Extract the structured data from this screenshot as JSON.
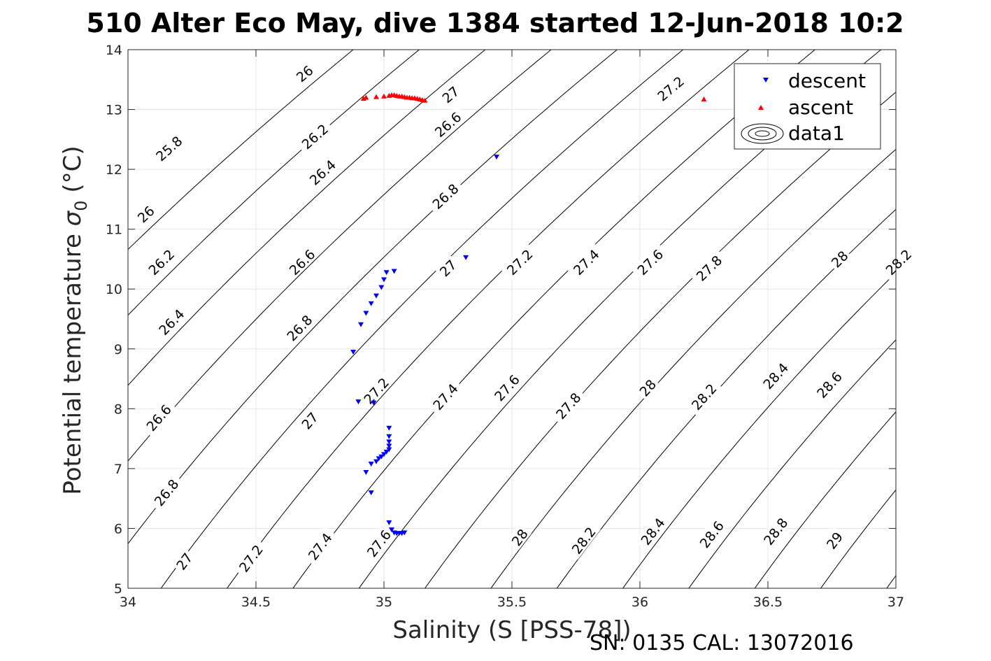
{
  "chart_data": {
    "type": "scatter",
    "title": "510 Alter Eco May, dive 1384 started 12-Jun-2018 10:2",
    "xlabel": "Salinity (S [PSS-78])",
    "ylabel": "Potential temperature σ₀ (°C)",
    "ylabel_main": "Potential temperature ",
    "ylabel_sigma": "σ",
    "ylabel_sub": "0",
    "ylabel_unit": " (°C)",
    "footer": "SN: 0135  CAL: 13072016",
    "xlim": [
      34,
      37
    ],
    "ylim": [
      5,
      14
    ],
    "xticks": [
      34,
      34.5,
      35,
      35.5,
      36,
      36.5,
      37
    ],
    "xtick_labels": [
      "34",
      "34.5",
      "35",
      "35.5",
      "36",
      "36.5",
      "37"
    ],
    "yticks": [
      5,
      6,
      7,
      8,
      9,
      10,
      11,
      12,
      13,
      14
    ],
    "ytick_labels": [
      "5",
      "6",
      "7",
      "8",
      "9",
      "10",
      "11",
      "12",
      "13",
      "14"
    ],
    "grid": true,
    "legend_position": "top-right",
    "contours": {
      "name": "data1",
      "variable": "sigma_0",
      "levels": [
        25.8,
        26,
        26.2,
        26.4,
        26.6,
        26.8,
        27,
        27.2,
        27.4,
        27.6,
        27.8,
        28,
        28.2,
        28.4,
        28.6,
        28.8,
        29
      ],
      "labels": [
        {
          "text": "26",
          "s": 34.69,
          "t": 13.6
        },
        {
          "text": "25.8",
          "s": 34.16,
          "t": 12.35
        },
        {
          "text": "26.2",
          "s": 34.73,
          "t": 12.55
        },
        {
          "text": "26",
          "s": 34.07,
          "t": 11.25
        },
        {
          "text": "26.4",
          "s": 34.76,
          "t": 11.95
        },
        {
          "text": "26.6",
          "s": 35.25,
          "t": 12.75
        },
        {
          "text": "26.2",
          "s": 34.13,
          "t": 10.45
        },
        {
          "text": "26.6",
          "s": 34.68,
          "t": 10.45
        },
        {
          "text": "26.8",
          "s": 35.24,
          "t": 11.55
        },
        {
          "text": "27",
          "s": 35.26,
          "t": 13.25
        },
        {
          "text": "27.2",
          "s": 36.12,
          "t": 13.35
        },
        {
          "text": "26.4",
          "s": 34.17,
          "t": 9.45
        },
        {
          "text": "26.8",
          "s": 34.67,
          "t": 9.35
        },
        {
          "text": "27",
          "s": 35.25,
          "t": 10.35
        },
        {
          "text": "27.2",
          "s": 35.53,
          "t": 10.45
        },
        {
          "text": "27.4",
          "s": 35.79,
          "t": 10.45
        },
        {
          "text": "27.6",
          "s": 36.04,
          "t": 10.45
        },
        {
          "text": "27.8",
          "s": 36.27,
          "t": 10.35
        },
        {
          "text": "28",
          "s": 36.78,
          "t": 10.5
        },
        {
          "text": "28.2",
          "s": 37.01,
          "t": 10.45
        },
        {
          "text": "26.6",
          "s": 34.12,
          "t": 7.85
        },
        {
          "text": "27",
          "s": 34.71,
          "t": 7.8
        },
        {
          "text": "27.2",
          "s": 34.97,
          "t": 8.3
        },
        {
          "text": "27.4",
          "s": 35.24,
          "t": 8.2
        },
        {
          "text": "27.6",
          "s": 35.48,
          "t": 8.35
        },
        {
          "text": "27.8",
          "s": 35.72,
          "t": 8.05
        },
        {
          "text": "28",
          "s": 36.03,
          "t": 8.35
        },
        {
          "text": "28.2",
          "s": 36.25,
          "t": 8.2
        },
        {
          "text": "28.4",
          "s": 36.53,
          "t": 8.55
        },
        {
          "text": "28.6",
          "s": 36.74,
          "t": 8.4
        },
        {
          "text": "26.8",
          "s": 34.15,
          "t": 6.6
        },
        {
          "text": "27",
          "s": 34.22,
          "t": 5.45
        },
        {
          "text": "27.2",
          "s": 34.48,
          "t": 5.5
        },
        {
          "text": "27.4",
          "s": 34.75,
          "t": 5.7
        },
        {
          "text": "27.6",
          "s": 34.98,
          "t": 5.75
        },
        {
          "text": "28",
          "s": 35.53,
          "t": 5.85
        },
        {
          "text": "28.2",
          "s": 35.78,
          "t": 5.8
        },
        {
          "text": "28.4",
          "s": 36.05,
          "t": 5.95
        },
        {
          "text": "28.6",
          "s": 36.28,
          "t": 5.9
        },
        {
          "text": "28.8",
          "s": 36.53,
          "t": 5.95
        },
        {
          "text": "29",
          "s": 36.76,
          "t": 5.8
        }
      ]
    },
    "series": [
      {
        "name": "descent",
        "marker": "triangle-down",
        "color": "#0000ff",
        "x": [
          35.44,
          35.32,
          35.04,
          35.01,
          35.0,
          34.99,
          34.97,
          34.95,
          34.93,
          34.91,
          34.88,
          34.9,
          34.96,
          35.02,
          35.02,
          35.02,
          35.02,
          35.02,
          35.01,
          35.0,
          34.99,
          34.98,
          34.97,
          34.95,
          34.93,
          34.95,
          35.02,
          35.03,
          35.04,
          35.05,
          35.06,
          35.07,
          35.08
        ],
        "y": [
          12.21,
          10.53,
          10.3,
          10.28,
          10.16,
          10.03,
          9.89,
          9.76,
          9.6,
          9.41,
          8.95,
          8.12,
          8.1,
          7.68,
          7.54,
          7.45,
          7.38,
          7.32,
          7.28,
          7.24,
          7.2,
          7.17,
          7.12,
          7.08,
          6.94,
          6.6,
          6.1,
          5.98,
          5.93,
          5.92,
          5.92,
          5.92,
          5.93
        ]
      },
      {
        "name": "ascent",
        "marker": "triangle-up",
        "color": "#ff0000",
        "x": [
          34.92,
          34.93,
          34.97,
          35.0,
          35.02,
          35.03,
          35.04,
          35.05,
          35.06,
          35.07,
          35.08,
          35.09,
          35.1,
          35.11,
          35.12,
          35.13,
          35.14,
          35.15,
          35.16,
          36.25
        ],
        "y": [
          13.18,
          13.2,
          13.21,
          13.22,
          13.23,
          13.24,
          13.24,
          13.23,
          13.22,
          13.22,
          13.21,
          13.2,
          13.2,
          13.19,
          13.19,
          13.18,
          13.17,
          13.16,
          13.15,
          13.17
        ]
      }
    ],
    "legend": [
      "descent",
      "ascent",
      "data1"
    ]
  }
}
